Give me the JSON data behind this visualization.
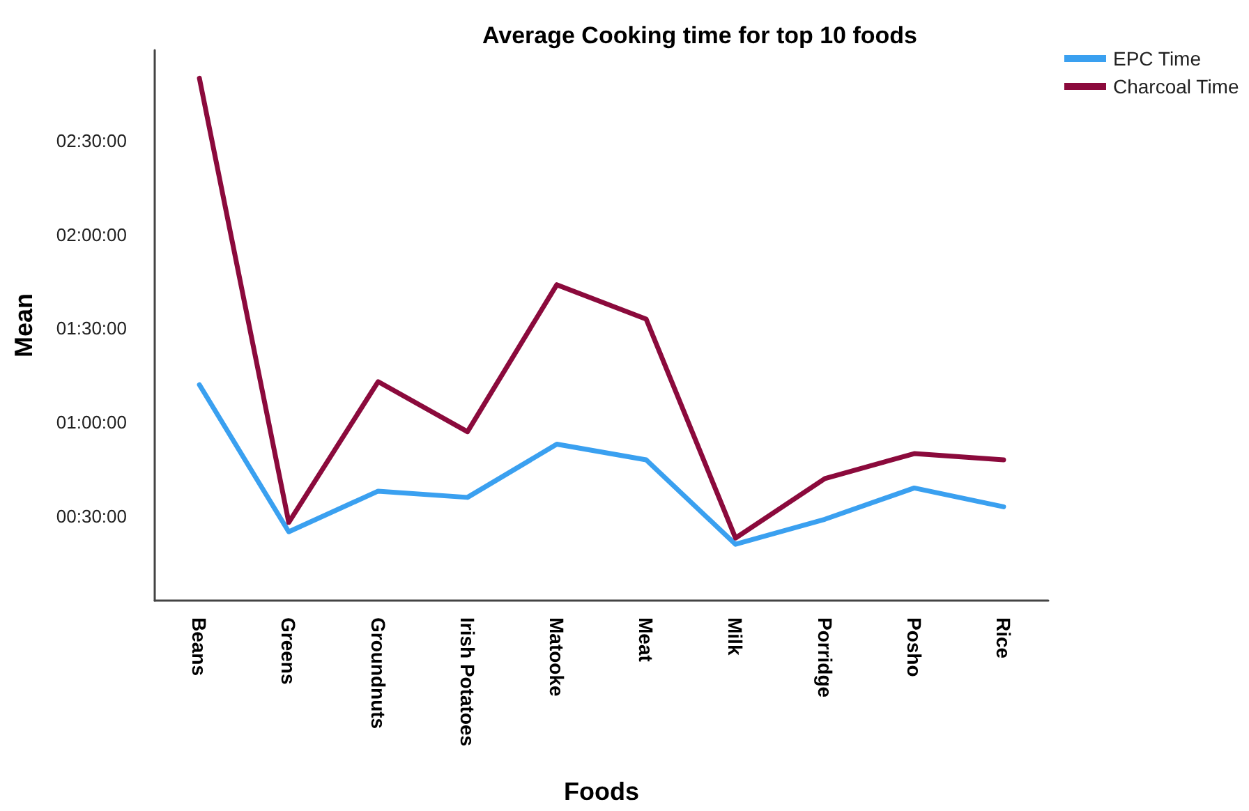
{
  "chart_data": {
    "type": "line",
    "title": "Average Cooking time for top 10 foods",
    "xlabel": "Foods",
    "ylabel": "Mean",
    "categories": [
      "Beans",
      "Greens",
      "Groundnuts",
      "Irish Potatoes",
      "Matooke",
      "Meat",
      "Milk",
      "Porridge",
      "Posho",
      "Rice"
    ],
    "series": [
      {
        "name": "EPC Time",
        "color": "#3aa0f0",
        "values": [
          72,
          25,
          38,
          36,
          53,
          48,
          21,
          29,
          39,
          33
        ]
      },
      {
        "name": "Charcoal Time",
        "color": "#8b0a3c",
        "values": [
          170,
          28,
          73,
          57,
          104,
          93,
          23,
          42,
          50,
          48
        ]
      }
    ],
    "ylim": [
      3,
      179
    ],
    "yticks": [
      {
        "value": 30,
        "label": "00:30:00"
      },
      {
        "value": 60,
        "label": "01:00:00"
      },
      {
        "value": 90,
        "label": "01:30:00"
      },
      {
        "value": 120,
        "label": "02:00:00"
      },
      {
        "value": 150,
        "label": "02:30:00"
      }
    ],
    "grid": false,
    "legend": "top right",
    "marker": "none",
    "line_style": "solid"
  }
}
